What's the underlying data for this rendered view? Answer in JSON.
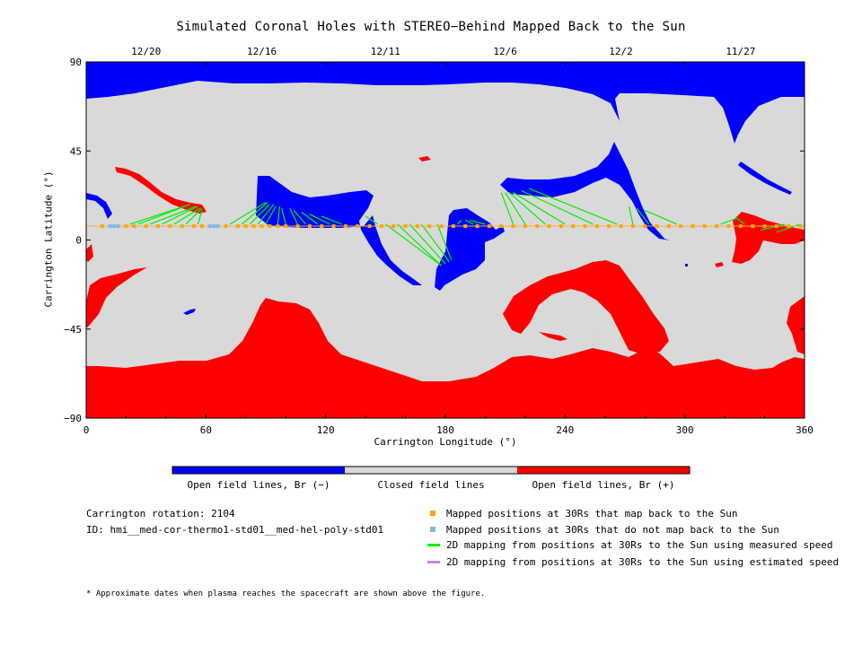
{
  "chart_data": {
    "type": "heatmap",
    "title": "Simulated Coronal Holes with STEREO−Behind Mapped Back to the Sun",
    "xlabel": "Carrington Longitude (°)",
    "ylabel": "Carrington Latitude (°)",
    "xlim": [
      0,
      360
    ],
    "ylim": [
      -90,
      90
    ],
    "x_ticks": [
      "0",
      "60",
      "120",
      "180",
      "240",
      "300",
      "360"
    ],
    "y_ticks": [
      "90",
      "45",
      "0",
      "−45",
      "−90"
    ],
    "top_date_ticks": [
      {
        "label": "12/20",
        "lon": 30
      },
      {
        "label": "12/16",
        "lon": 88
      },
      {
        "label": "12/11",
        "lon": 150
      },
      {
        "label": "12/6",
        "lon": 210
      },
      {
        "label": "12/2",
        "lon": 268
      },
      {
        "label": "11/27",
        "lon": 328
      }
    ],
    "colorbar": [
      {
        "label": "Open field lines, Br (−)",
        "color": "#0000ff"
      },
      {
        "label": "Closed field lines",
        "color": "#d9d9d9"
      },
      {
        "label": "Open field lines, Br (+)",
        "color": "#ff0000"
      }
    ],
    "mapped_latitude": 7,
    "mapped_positions_lon": [
      8,
      20,
      24,
      30,
      36,
      42,
      48,
      54,
      58,
      62,
      70,
      76,
      80,
      84,
      88,
      92,
      96,
      100,
      106,
      112,
      118,
      124,
      130,
      136,
      142,
      148,
      154,
      160,
      166,
      172,
      178,
      184,
      190,
      196,
      202,
      208,
      214,
      220,
      226,
      232,
      238,
      244,
      250,
      256,
      262,
      268,
      274,
      280,
      286,
      292,
      298,
      304,
      310,
      316,
      322,
      328,
      334,
      340,
      346,
      352,
      358
    ],
    "unmapped_positions_lon": [
      12,
      14,
      16,
      62,
      64,
      66
    ],
    "field_line_mappings": [
      [
        22,
        8,
        52,
        18
      ],
      [
        26,
        8,
        52,
        18
      ],
      [
        32,
        8,
        55,
        17
      ],
      [
        38,
        8,
        56,
        17
      ],
      [
        44,
        8,
        57,
        16
      ],
      [
        50,
        8,
        58,
        16
      ],
      [
        56,
        8,
        58,
        15
      ],
      [
        72,
        8,
        90,
        19
      ],
      [
        78,
        8,
        91,
        19
      ],
      [
        82,
        8,
        92,
        18
      ],
      [
        86,
        8,
        94,
        18
      ],
      [
        90,
        8,
        95,
        17
      ],
      [
        96,
        8,
        97,
        17
      ],
      [
        100,
        8,
        98,
        16
      ],
      [
        106,
        8,
        102,
        16
      ],
      [
        110,
        8,
        104,
        15
      ],
      [
        116,
        8,
        108,
        14
      ],
      [
        122,
        8,
        112,
        13
      ],
      [
        128,
        8,
        118,
        12
      ],
      [
        146,
        8,
        140,
        12
      ],
      [
        150,
        8,
        178,
        -13
      ],
      [
        156,
        8,
        178,
        -13
      ],
      [
        162,
        8,
        180,
        -12
      ],
      [
        168,
        8,
        182,
        -11
      ],
      [
        176,
        8,
        183,
        -10
      ],
      [
        186,
        8,
        188,
        10
      ],
      [
        194,
        8,
        190,
        10
      ],
      [
        200,
        8,
        192,
        10
      ],
      [
        214,
        8,
        208,
        24
      ],
      [
        220,
        8,
        210,
        24
      ],
      [
        230,
        8,
        212,
        24
      ],
      [
        240,
        8,
        214,
        24
      ],
      [
        254,
        8,
        218,
        25
      ],
      [
        266,
        8,
        222,
        26
      ],
      [
        274,
        8,
        272,
        17
      ],
      [
        282,
        8,
        276,
        16
      ],
      [
        296,
        8,
        280,
        15
      ],
      [
        318,
        8,
        326,
        11
      ],
      [
        330,
        8,
        326,
        11
      ],
      [
        350,
        8,
        338,
        5
      ],
      [
        358,
        8,
        346,
        4
      ]
    ]
  },
  "info": {
    "rotation": "Carrington rotation: 2104",
    "id": "ID: hmi__med-cor-thermo1-std01__med-hel-poly-std01",
    "note": "* Approximate dates when plasma reaches the spacecraft are shown above the figure."
  },
  "legend": {
    "mapped": {
      "label": "Mapped positions at 30Rs that map back to the Sun",
      "color": "#ffa500"
    },
    "unmapped": {
      "label": "Mapped positions at 30Rs that do not map back to the Sun",
      "color": "#7fb8f0"
    },
    "measured": {
      "label": "2D mapping from positions at 30Rs to the Sun using measured speed",
      "color": "#00ee00"
    },
    "estimated": {
      "label": "2D mapping from positions at 30Rs to the Sun using estimated speed",
      "color": "#bb88ee"
    }
  }
}
